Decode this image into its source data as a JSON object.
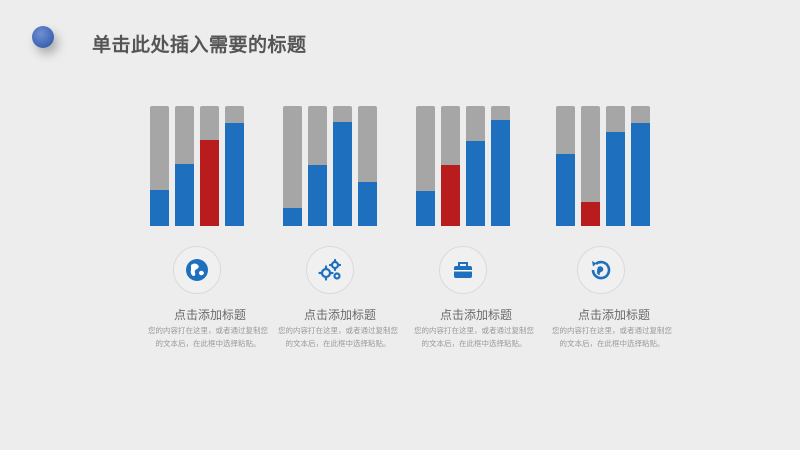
{
  "title": "单击此处插入需要的标题",
  "colors": {
    "track": "#a6a6a6",
    "blue": "#1e6fbd",
    "red": "#b81c1c"
  },
  "chart_data": [
    {
      "type": "bar",
      "values": [
        30,
        52,
        72,
        86
      ],
      "colors": [
        "blue",
        "blue",
        "red",
        "blue"
      ],
      "ylim": [
        0,
        100
      ]
    },
    {
      "type": "bar",
      "values": [
        15,
        51,
        87,
        37
      ],
      "colors": [
        "blue",
        "blue",
        "blue",
        "blue"
      ],
      "ylim": [
        0,
        100
      ]
    },
    {
      "type": "bar",
      "values": [
        29,
        51,
        71,
        88
      ],
      "colors": [
        "blue",
        "red",
        "blue",
        "blue"
      ],
      "ylim": [
        0,
        100
      ]
    },
    {
      "type": "bar",
      "values": [
        60,
        20,
        78,
        86
      ],
      "colors": [
        "blue",
        "red",
        "blue",
        "blue"
      ],
      "ylim": [
        0,
        100
      ]
    }
  ],
  "items": [
    {
      "icon": "globe-icon",
      "title": "点击添加标题",
      "desc": "您的内容打在这里，或者通过复制您的文本后，在此框中选择粘贴。"
    },
    {
      "icon": "gears-icon",
      "title": "点击添加标题",
      "desc": "您的内容打在这里，或者通过复制您的文本后，在此框中选择粘贴。"
    },
    {
      "icon": "briefcase-icon",
      "title": "点击添加标题",
      "desc": "您的内容打在这里，或者通过复制您的文本后，在此框中选择粘贴。"
    },
    {
      "icon": "refresh-globe-icon",
      "title": "点击添加标题",
      "desc": "您的内容打在这里，或者通过复制您的文本后，在此框中选择粘贴。"
    }
  ]
}
